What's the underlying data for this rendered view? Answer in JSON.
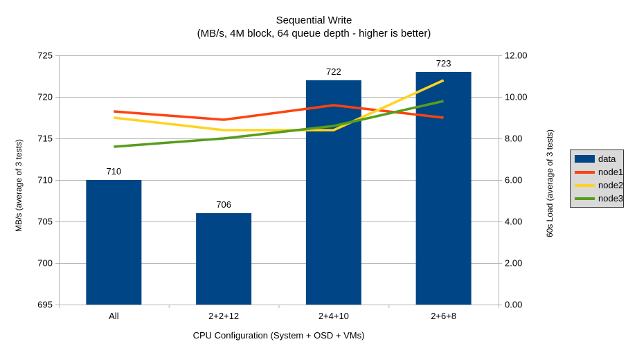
{
  "chart_data": {
    "type": "bar+line",
    "title": "Sequential Write",
    "subtitle": "(MB/s, 4M block, 64 queue depth - higher is better)",
    "xlabel": "CPU Configuration (System + OSD + VMs)",
    "categories": [
      "All",
      "2+2+12",
      "2+4+10",
      "2+6+8"
    ],
    "left_axis": {
      "label": "MB/s (average of 3 tests)",
      "min": 695,
      "max": 725,
      "step": 5,
      "ticks": [
        "725",
        "720",
        "715",
        "710",
        "705",
        "700",
        "695"
      ]
    },
    "right_axis": {
      "label": "60s Load (average of 3 tests)",
      "min": 0,
      "max": 12,
      "step": 2,
      "ticks": [
        "12.00",
        "10.00",
        "8.00",
        "6.00",
        "4.00",
        "2.00",
        "0.00"
      ]
    },
    "bar_series": {
      "name": "data",
      "axis": "left",
      "color": "#004586",
      "values": [
        710,
        706,
        722,
        723
      ]
    },
    "line_series": [
      {
        "name": "node1",
        "axis": "right",
        "color": "#FF420E",
        "values": [
          9.3,
          8.9,
          9.6,
          9.0
        ]
      },
      {
        "name": "node2",
        "axis": "right",
        "color": "#FFD320",
        "values": [
          9.0,
          8.4,
          8.4,
          10.8
        ]
      },
      {
        "name": "node3",
        "axis": "right",
        "color": "#579D1C",
        "values": [
          7.6,
          8.0,
          8.6,
          9.8
        ]
      }
    ],
    "legend": {
      "entries": [
        "data",
        "node1",
        "node2",
        "node3"
      ],
      "background": "#d9d9d9"
    },
    "layout_colors": {
      "grid": "#b3b3b3",
      "axis": "#b3b3b3",
      "background": "#ffffff"
    },
    "grid": "on",
    "legend_position": "right"
  }
}
